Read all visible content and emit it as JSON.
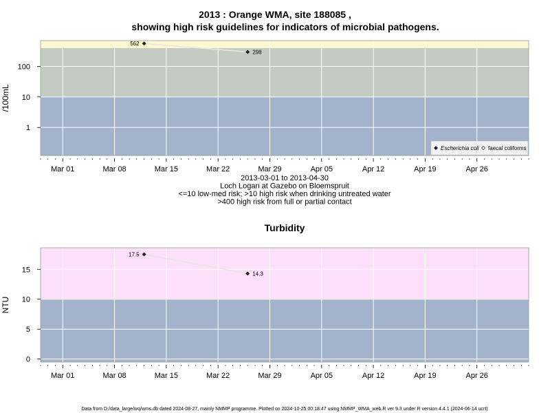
{
  "chart_data": [
    {
      "type": "scatter",
      "title": "2013 : Orange WMA, site 188085 ,",
      "subtitle": "showing high risk guidelines for indicators of microbial pathogens.",
      "ylabel": "/100mL",
      "y_scale": "log10",
      "ylim": [
        0.12,
        700
      ],
      "y_ticks": [
        1,
        10,
        100
      ],
      "y_tick_labels": [
        "1",
        "10",
        "100"
      ],
      "x_range": [
        "2013-02-26",
        "2013-05-03"
      ],
      "x_ticks": [
        "2013-03-01",
        "2013-03-08",
        "2013-03-15",
        "2013-03-22",
        "2013-03-29",
        "2013-04-05",
        "2013-04-12",
        "2013-04-19",
        "2013-04-26"
      ],
      "x_tick_labels": [
        "Mar 01",
        "Mar 08",
        "Mar 15",
        "Mar 22",
        "Mar 29",
        "Apr 05",
        "Apr 12",
        "Apr 19",
        "Apr 26"
      ],
      "bands": [
        {
          "from": 0.12,
          "to": 10,
          "color": "#a2b3cb"
        },
        {
          "from": 10,
          "to": 400,
          "color": "#c3cbc3"
        },
        {
          "from": 400,
          "to": 700,
          "color": "#fff8d0"
        }
      ],
      "grid": true,
      "series": [
        {
          "name": "Escherichia coli",
          "marker": "filled-diamond",
          "points": [
            {
              "x": "2013-03-12",
              "y": 562,
              "label": "562"
            },
            {
              "x": "2013-03-26",
              "y": 298,
              "label": "298"
            }
          ]
        }
      ],
      "legend": {
        "position": "bottom-right",
        "entries": [
          {
            "label": "Escherichia coli",
            "italic": true,
            "marker": "filled-diamond"
          },
          {
            "label": "faecal coliforms",
            "italic": false,
            "marker": "open-diamond"
          }
        ]
      },
      "caption": [
        "2013-03-01 to 2013-04-30",
        "Loch Logan at Gazebo on Bloemspruit",
        "<=10 low-med risk; >10 high risk when drinking untreated water",
        ">400 high risk from full or partial contact"
      ]
    },
    {
      "type": "scatter",
      "title": "Turbidity",
      "ylabel": "NTU",
      "ylim": [
        -0.5,
        18.6
      ],
      "y_ticks": [
        0,
        5,
        10,
        15
      ],
      "y_tick_labels": [
        "0",
        "5",
        "10",
        "15"
      ],
      "x_range": [
        "2013-02-26",
        "2013-05-03"
      ],
      "x_ticks": [
        "2013-03-01",
        "2013-03-08",
        "2013-03-15",
        "2013-03-22",
        "2013-03-29",
        "2013-04-05",
        "2013-04-12",
        "2013-04-19",
        "2013-04-26"
      ],
      "x_tick_labels": [
        "Mar 01",
        "Mar 08",
        "Mar 15",
        "Mar 22",
        "Mar 29",
        "Apr 05",
        "Apr 12",
        "Apr 19",
        "Apr 26"
      ],
      "bands": [
        {
          "from": -0.5,
          "to": 10,
          "color": "#a2b3cb"
        },
        {
          "from": 10,
          "to": 18.6,
          "color": "#fcdff8"
        }
      ],
      "grid": true,
      "series": [
        {
          "name": "",
          "marker": "filled-diamond",
          "points": [
            {
              "x": "2013-03-12",
              "y": 17.5,
              "label": "17.5"
            },
            {
              "x": "2013-03-26",
              "y": 14.3,
              "label": "14.3"
            }
          ]
        }
      ]
    }
  ],
  "footer": "Data from D:/data_large/wq/wms.db dated 2024-08-27, mainly NMMP programme. Plotted on 2024-10-25 00:18:47 using NMMP_WMA_web.R ver 9.3 under R version 4.4.1 (2024-06-14 ucrt)"
}
